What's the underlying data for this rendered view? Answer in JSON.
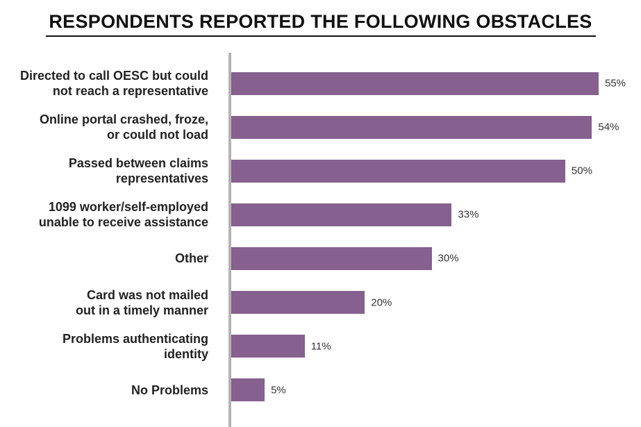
{
  "chart_data": {
    "type": "bar",
    "orientation": "horizontal",
    "title": "RESPONDENTS REPORTED THE FOLLOWING OBSTACLES",
    "categories": [
      "Directed to call OESC but could\nnot reach a representative",
      "Online portal crashed, froze,\nor could not load",
      "Passed between claims\nrepresentatives",
      "1099 worker/self-employed\nunable to receive assistance",
      "Other",
      "Card was not mailed\nout in a timely manner",
      "Problems authenticating\nidentity",
      "No Problems"
    ],
    "values": [
      55,
      54,
      50,
      33,
      30,
      20,
      11,
      5
    ],
    "value_labels": [
      "55%",
      "54%",
      "50%",
      "33%",
      "30%",
      "20%",
      "11%",
      "5%"
    ],
    "unit": "%",
    "xlim": [
      0,
      55
    ],
    "bar_color": "#86608f",
    "grid": false,
    "legend": "none"
  }
}
